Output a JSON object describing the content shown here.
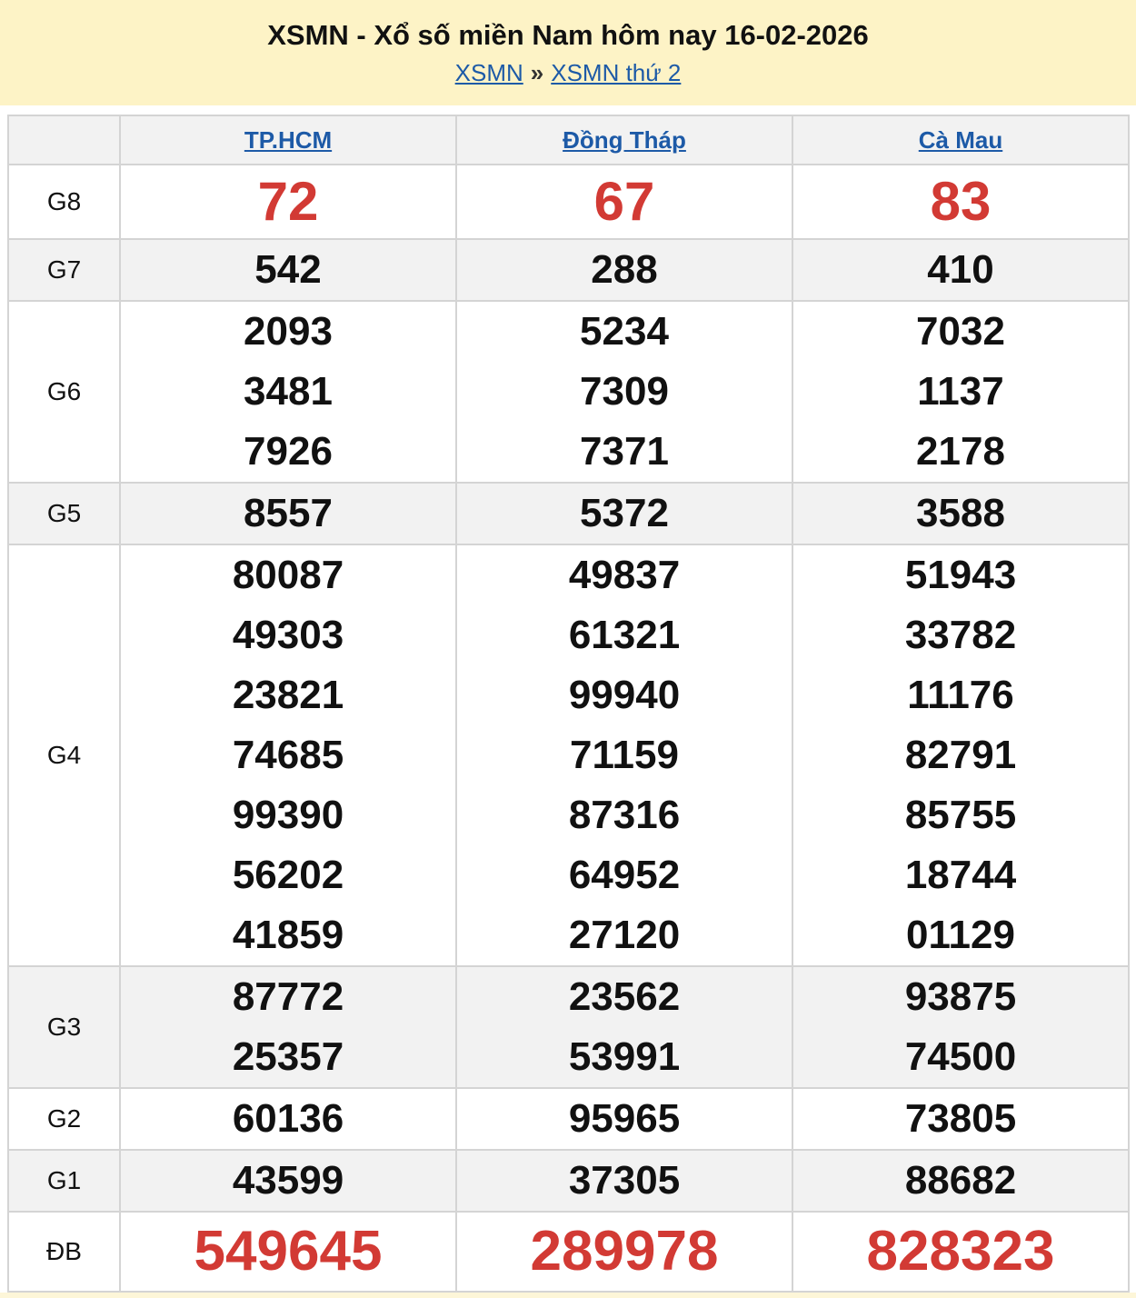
{
  "header": {
    "title": "XSMN - Xổ số miền Nam hôm nay 16-02-2026",
    "breadcrumb": [
      {
        "label": "XSMN"
      },
      {
        "label": "XSMN thứ 2"
      }
    ],
    "separator": "»"
  },
  "table": {
    "provinces": [
      "TP.HCM",
      "Đồng Tháp",
      "Cà Mau"
    ],
    "prizes": [
      {
        "label": "G8",
        "values": [
          [
            "72"
          ],
          [
            "67"
          ],
          [
            "83"
          ]
        ]
      },
      {
        "label": "G7",
        "values": [
          [
            "542"
          ],
          [
            "288"
          ],
          [
            "410"
          ]
        ]
      },
      {
        "label": "G6",
        "values": [
          [
            "2093",
            "3481",
            "7926"
          ],
          [
            "5234",
            "7309",
            "7371"
          ],
          [
            "7032",
            "1137",
            "2178"
          ]
        ]
      },
      {
        "label": "G5",
        "values": [
          [
            "8557"
          ],
          [
            "5372"
          ],
          [
            "3588"
          ]
        ]
      },
      {
        "label": "G4",
        "values": [
          [
            "80087",
            "49303",
            "23821",
            "74685",
            "99390",
            "56202",
            "41859"
          ],
          [
            "49837",
            "61321",
            "99940",
            "71159",
            "87316",
            "64952",
            "27120"
          ],
          [
            "51943",
            "33782",
            "11176",
            "82791",
            "85755",
            "18744",
            "01129"
          ]
        ]
      },
      {
        "label": "G3",
        "values": [
          [
            "87772",
            "25357"
          ],
          [
            "23562",
            "53991"
          ],
          [
            "93875",
            "74500"
          ]
        ]
      },
      {
        "label": "G2",
        "values": [
          [
            "60136"
          ],
          [
            "95965"
          ],
          [
            "73805"
          ]
        ]
      },
      {
        "label": "G1",
        "values": [
          [
            "43599"
          ],
          [
            "37305"
          ],
          [
            "88682"
          ]
        ]
      },
      {
        "label": "ĐB",
        "values": [
          [
            "549645"
          ],
          [
            "289978"
          ],
          [
            "828323"
          ]
        ]
      }
    ]
  },
  "colors": {
    "highlight": "#d23a34",
    "link": "#1d5aa7",
    "banner": "#fdf3c6"
  }
}
